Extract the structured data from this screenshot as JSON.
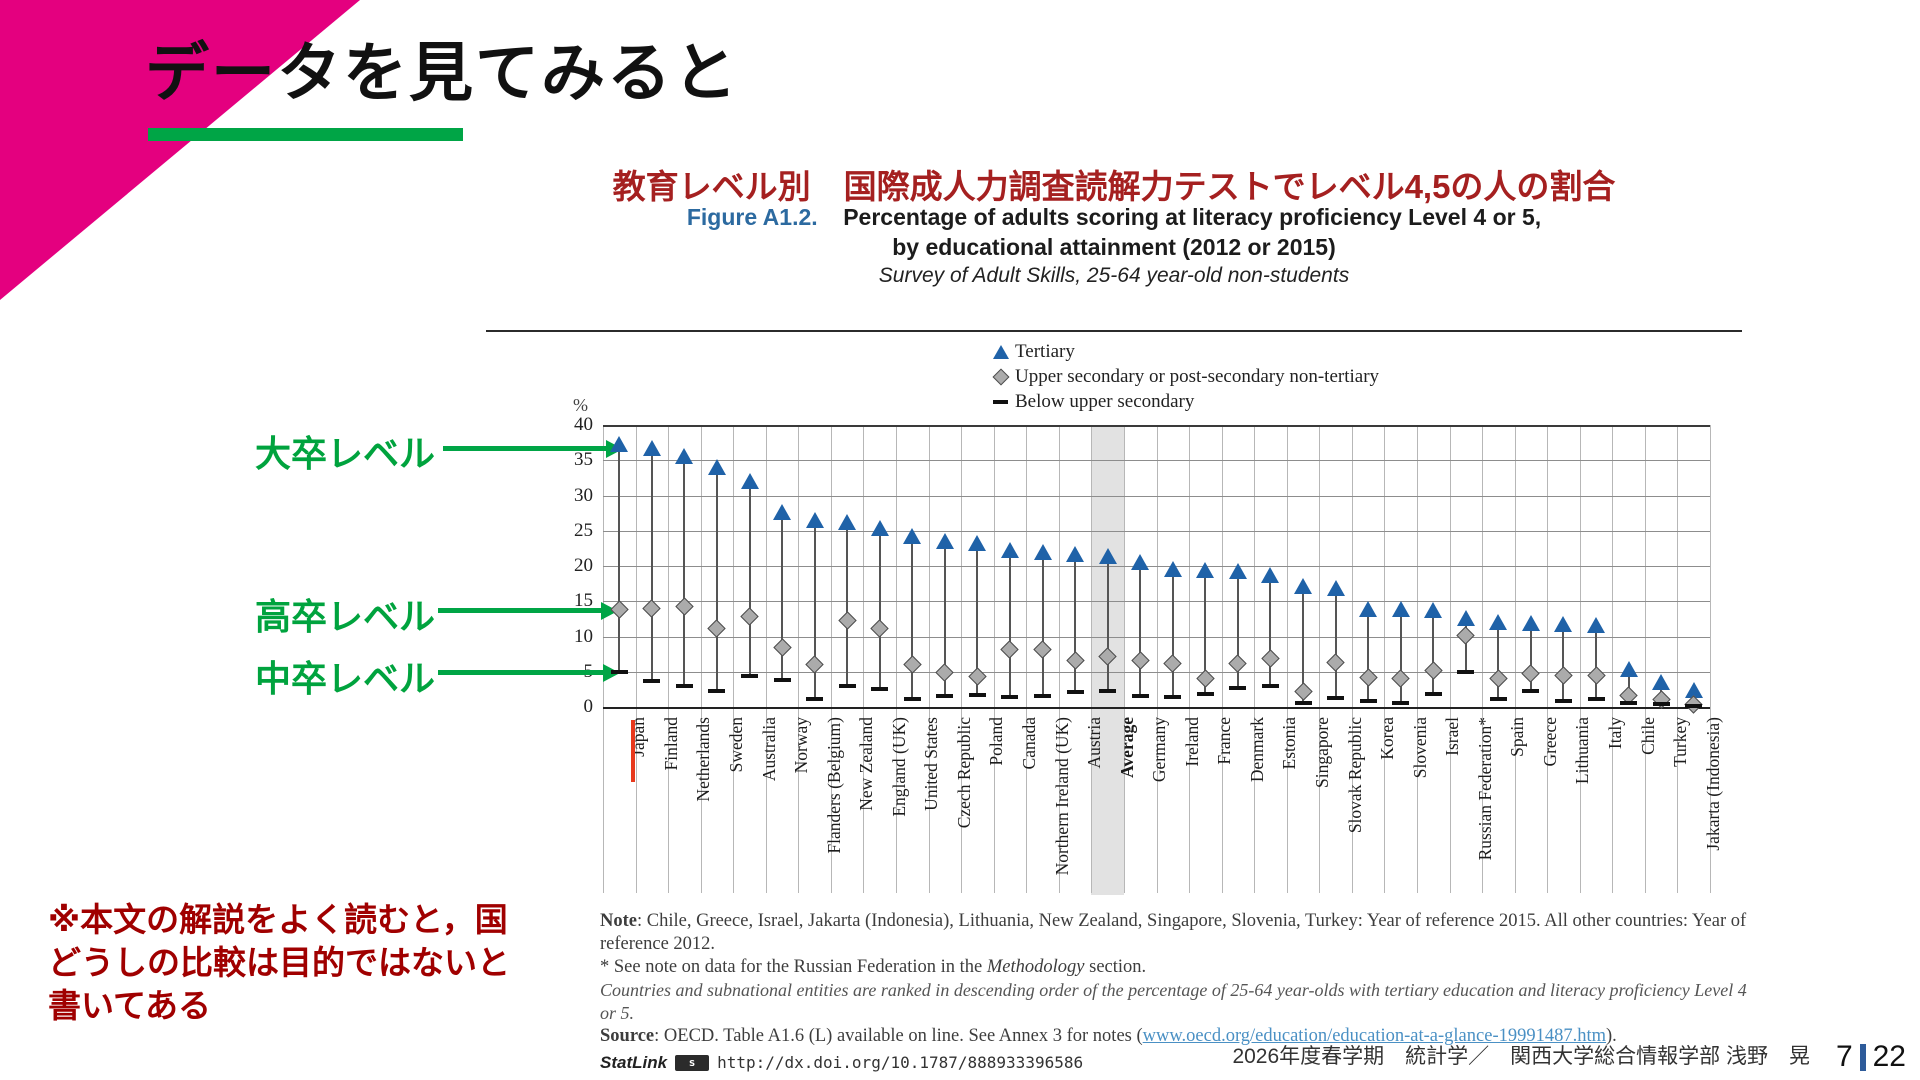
{
  "slide": {
    "title": "データを見てみると",
    "footer": "2026年度春学期　統計学／　関西大学総合情報学部 浅野　晃",
    "page_number": "7",
    "page_total": "22",
    "side_note_line1": "※本文の解説をよく読むと，国",
    "side_note_line2": "どうしの比較は目的ではないと",
    "side_note_line3": "書いてある"
  },
  "annotations": {
    "tertiary_label": "大卒レベル",
    "upper_secondary_label": "高卒レベル",
    "below_secondary_label": "中卒レベル"
  },
  "figure": {
    "title_ja": "教育レベル別　国際成人力調査読解力テストでレベル4,5の人の割合",
    "figure_label": "Figure A1.2.",
    "title_line1": "Percentage of adults scoring at literacy proficiency Level 4 or 5,",
    "title_line2": "by educational attainment (2012 or 2015)",
    "subtitle": "Survey of Adult Skills, 25-64 year-old non-students",
    "notes": {
      "note_label": "Note",
      "note_text": ": Chile, Greece, Israel, Jakarta (Indonesia), Lithuania, New Zealand, Singapore, Slovenia, Turkey: Year of reference 2015. All other countries: Year of reference 2012.",
      "star_pre": "* See note on data for the Russian Federation in the ",
      "star_italic": "Methodology",
      "star_post": " section.",
      "ranking": "Countries and subnational entities are ranked in descending order of the percentage of 25-64 year-olds with tertiary education and literacy proficiency Level 4 or 5.",
      "source_label": "Source",
      "source_pre": ": OECD. Table A1.6 (L) available on line. See Annex 3 for notes (",
      "source_link": "www.oecd.org/education/education-at-a-glance-19991487.htm",
      "source_post": ").",
      "statlink_label": "StatLink",
      "statlink_url": "http://dx.doi.org/10.1787/888933396586"
    }
  },
  "chart_data": {
    "type": "scatter",
    "unit": "%",
    "ylim": [
      0,
      40
    ],
    "yticks": [
      40,
      35,
      30,
      25,
      20,
      15,
      10,
      5,
      0
    ],
    "grid": true,
    "legend_position": "top",
    "highlighted_category": "Japan",
    "average_category": "Average",
    "categories": [
      "Japan",
      "Finland",
      "Netherlands",
      "Sweden",
      "Australia",
      "Norway",
      "Flanders (Belgium)",
      "New Zealand",
      "England (UK)",
      "United States",
      "Czech Republic",
      "Poland",
      "Canada",
      "Northern Ireland (UK)",
      "Austria",
      "Average",
      "Germany",
      "Ireland",
      "France",
      "Denmark",
      "Estonia",
      "Singapore",
      "Slovak Republic",
      "Korea",
      "Slovenia",
      "Israel",
      "Russian Federation*",
      "Spain",
      "Greece",
      "Lithuania",
      "Italy",
      "Chile",
      "Turkey",
      "Jakarta (Indonesia)"
    ],
    "series": [
      {
        "name": "Tertiary",
        "marker": "triangle",
        "color": "#1F62A8",
        "values": [
          37.3,
          36.8,
          35.6,
          34.1,
          32.0,
          27.6,
          26.5,
          26.3,
          25.4,
          24.3,
          23.6,
          23.3,
          22.2,
          22.0,
          21.7,
          21.4,
          20.6,
          19.6,
          19.4,
          19.3,
          18.7,
          17.1,
          16.9,
          13.9,
          13.9,
          13.8,
          12.6,
          12.0,
          11.9,
          11.8,
          11.7,
          5.4,
          3.5,
          2.4
        ]
      },
      {
        "name": "Upper secondary or post-secondary non-tertiary",
        "marker": "diamond",
        "color": "#ABABAB",
        "values": [
          13.8,
          14.0,
          14.2,
          11.1,
          12.8,
          8.4,
          6.0,
          12.3,
          11.1,
          6.0,
          4.9,
          4.3,
          8.2,
          8.2,
          6.6,
          7.2,
          6.6,
          6.1,
          4.0,
          6.1,
          6.9,
          2.2,
          6.3,
          4.2,
          4.0,
          5.2,
          10.1,
          4.1,
          4.8,
          4.4,
          4.5,
          1.6,
          1.1,
          0.3
        ]
      },
      {
        "name": "Below upper secondary",
        "marker": "dash",
        "color": "#111111",
        "values": [
          4.9,
          3.7,
          3.0,
          2.2,
          4.4,
          3.8,
          1.1,
          3.0,
          2.5,
          1.2,
          1.6,
          1.7,
          1.4,
          1.6,
          2.1,
          2.3,
          1.5,
          1.4,
          1.8,
          2.7,
          3.0,
          0.5,
          1.3,
          0.9,
          0.6,
          1.8,
          5.0,
          1.2,
          2.3,
          0.9,
          1.2,
          0.6,
          0.4,
          0.1
        ]
      }
    ]
  },
  "colors": {
    "accent_pink": "#E4007F",
    "accent_green": "#00A546",
    "title_dark_red": "#A52020",
    "note_dark_red": "#A00000",
    "figure_blue": "#2C6AA0",
    "marker_blue": "#1F62A8",
    "marker_gray": "#ABABAB",
    "japan_mark_red": "#E8391D",
    "page_bar_blue": "#2E5B9A"
  }
}
